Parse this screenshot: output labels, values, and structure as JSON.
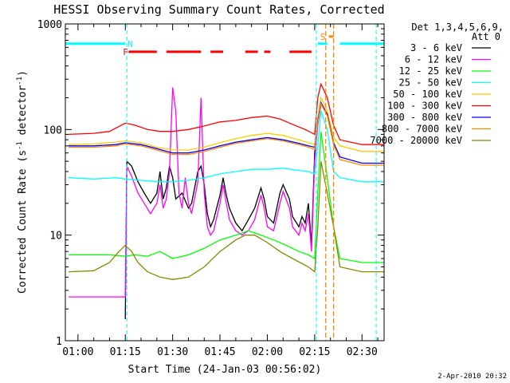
{
  "chart_data": {
    "type": "line",
    "title": "HESSI Observing Summary Count Rates, Corrected",
    "xlabel": "Start Time (24-Jan-03 00:56:02)",
    "ylabel_main": "Corrected Count Rate (s",
    "ylabel_sup1": "-1",
    "ylabel_mid": " detector",
    "ylabel_sup2": "-1",
    "ylabel_end": ")",
    "y_scale": "log",
    "ylim": [
      1,
      1000
    ],
    "xlim_min": [
      56,
      157
    ],
    "x_ticks": [
      {
        "label": "01:00",
        "min": 60
      },
      {
        "label": "01:15",
        "min": 75
      },
      {
        "label": "01:30",
        "min": 90
      },
      {
        "label": "01:45",
        "min": 105
      },
      {
        "label": "02:00",
        "min": 120
      },
      {
        "label": "02:15",
        "min": 135
      },
      {
        "label": "02:30",
        "min": 150
      }
    ],
    "y_ticks": [
      {
        "label": "1",
        "value": 1
      },
      {
        "label": "10",
        "value": 10
      },
      {
        "label": "100",
        "value": 100
      },
      {
        "label": "1000",
        "value": 1000
      }
    ],
    "legend_header_1": "Det 1,3,4,5,6,9,",
    "legend_header_2": "Att 0",
    "legend_placement": "right",
    "series": [
      {
        "name": "3 - 6 keV",
        "color": "#000000",
        "points": [
          [
            75,
            1.6
          ],
          [
            75.5,
            50
          ],
          [
            77,
            45
          ],
          [
            79,
            32
          ],
          [
            81,
            25
          ],
          [
            83,
            20
          ],
          [
            85,
            25
          ],
          [
            86,
            40
          ],
          [
            87,
            22
          ],
          [
            88,
            28
          ],
          [
            89,
            45
          ],
          [
            90,
            35
          ],
          [
            91,
            22
          ],
          [
            93,
            25
          ],
          [
            95,
            18
          ],
          [
            96,
            20
          ],
          [
            98,
            40
          ],
          [
            99,
            45
          ],
          [
            100,
            30
          ],
          [
            101,
            16
          ],
          [
            102,
            12
          ],
          [
            103,
            14
          ],
          [
            105,
            24
          ],
          [
            106,
            35
          ],
          [
            107,
            24
          ],
          [
            108,
            18
          ],
          [
            110,
            13
          ],
          [
            112,
            11
          ],
          [
            114,
            14
          ],
          [
            116,
            18
          ],
          [
            118,
            28
          ],
          [
            119,
            22
          ],
          [
            120,
            15
          ],
          [
            122,
            13
          ],
          [
            124,
            25
          ],
          [
            125,
            30
          ],
          [
            127,
            22
          ],
          [
            128,
            15
          ],
          [
            130,
            12
          ],
          [
            131,
            15
          ],
          [
            132,
            13
          ],
          [
            133,
            20
          ],
          [
            134,
            8
          ],
          [
            135,
            60
          ],
          [
            136,
            130
          ],
          [
            137,
            180
          ]
        ]
      },
      {
        "name": "6 - 12 keV",
        "color": "#ff00ff",
        "points": [
          [
            57,
            2.6
          ],
          [
            75,
            2.6
          ],
          [
            75.5,
            45
          ],
          [
            77,
            36
          ],
          [
            79,
            25
          ],
          [
            81,
            20
          ],
          [
            83,
            16
          ],
          [
            85,
            20
          ],
          [
            86,
            30
          ],
          [
            87,
            18
          ],
          [
            88,
            22
          ],
          [
            89,
            40
          ],
          [
            90,
            250
          ],
          [
            91,
            150
          ],
          [
            92,
            25
          ],
          [
            93,
            18
          ],
          [
            94,
            35
          ],
          [
            95,
            20
          ],
          [
            96,
            16
          ],
          [
            98,
            32
          ],
          [
            99,
            200
          ],
          [
            100,
            25
          ],
          [
            101,
            12
          ],
          [
            102,
            10
          ],
          [
            103,
            11
          ],
          [
            105,
            20
          ],
          [
            106,
            30
          ],
          [
            107,
            20
          ],
          [
            108,
            14
          ],
          [
            110,
            11
          ],
          [
            112,
            10
          ],
          [
            114,
            11
          ],
          [
            116,
            14
          ],
          [
            118,
            24
          ],
          [
            119,
            18
          ],
          [
            120,
            12
          ],
          [
            122,
            11
          ],
          [
            124,
            20
          ],
          [
            125,
            26
          ],
          [
            127,
            18
          ],
          [
            128,
            12
          ],
          [
            130,
            10
          ],
          [
            131,
            13
          ],
          [
            132,
            11
          ],
          [
            133,
            16
          ],
          [
            134,
            7
          ],
          [
            135,
            50
          ],
          [
            136,
            110
          ],
          [
            137,
            170
          ]
        ]
      },
      {
        "name": "12 - 25 keV",
        "color": "#00ff00",
        "points": [
          [
            57,
            6.5
          ],
          [
            70,
            6.5
          ],
          [
            75,
            6.3
          ],
          [
            78,
            6.5
          ],
          [
            82,
            6.3
          ],
          [
            86,
            7
          ],
          [
            90,
            6
          ],
          [
            95,
            6.5
          ],
          [
            100,
            7.5
          ],
          [
            105,
            9
          ],
          [
            110,
            10
          ],
          [
            114,
            11
          ],
          [
            118,
            10
          ],
          [
            122,
            9
          ],
          [
            126,
            8
          ],
          [
            130,
            7
          ],
          [
            133,
            6.5
          ],
          [
            135,
            6
          ],
          [
            136,
            25
          ],
          [
            137,
            95
          ],
          [
            139,
            35
          ],
          [
            141,
            12
          ],
          [
            143,
            6
          ],
          [
            150,
            5.5
          ],
          [
            157,
            5.5
          ]
        ]
      },
      {
        "name": "25 - 50 keV",
        "color": "#00ffff",
        "points": [
          [
            57,
            35
          ],
          [
            65,
            34
          ],
          [
            72,
            35
          ],
          [
            75,
            34
          ],
          [
            80,
            33
          ],
          [
            85,
            32
          ],
          [
            90,
            32
          ],
          [
            95,
            33
          ],
          [
            100,
            35
          ],
          [
            105,
            38
          ],
          [
            110,
            40
          ],
          [
            115,
            42
          ],
          [
            120,
            42
          ],
          [
            125,
            43
          ],
          [
            130,
            41
          ],
          [
            133,
            40
          ],
          [
            135,
            38
          ],
          [
            136,
            70
          ],
          [
            137,
            150
          ],
          [
            139,
            100
          ],
          [
            141,
            40
          ],
          [
            143,
            35
          ],
          [
            150,
            32
          ],
          [
            157,
            32
          ]
        ]
      },
      {
        "name": "50 - 100 keV",
        "color": "#ffcc00",
        "points": [
          [
            57,
            72
          ],
          [
            65,
            73
          ],
          [
            72,
            76
          ],
          [
            75,
            78
          ],
          [
            80,
            75
          ],
          [
            85,
            68
          ],
          [
            90,
            64
          ],
          [
            95,
            64
          ],
          [
            100,
            68
          ],
          [
            105,
            75
          ],
          [
            110,
            82
          ],
          [
            115,
            88
          ],
          [
            120,
            92
          ],
          [
            125,
            88
          ],
          [
            130,
            80
          ],
          [
            133,
            75
          ],
          [
            135,
            72
          ],
          [
            136,
            130
          ],
          [
            137,
            200
          ],
          [
            139,
            150
          ],
          [
            141,
            85
          ],
          [
            143,
            70
          ],
          [
            150,
            62
          ],
          [
            157,
            62
          ]
        ]
      },
      {
        "name": "100 - 300 keV",
        "color": "#ff0000",
        "points": [
          [
            57,
            90
          ],
          [
            65,
            92
          ],
          [
            70,
            96
          ],
          [
            75,
            115
          ],
          [
            78,
            110
          ],
          [
            82,
            100
          ],
          [
            86,
            96
          ],
          [
            90,
            96
          ],
          [
            95,
            100
          ],
          [
            100,
            108
          ],
          [
            105,
            118
          ],
          [
            110,
            122
          ],
          [
            115,
            130
          ],
          [
            120,
            134
          ],
          [
            124,
            126
          ],
          [
            128,
            112
          ],
          [
            132,
            100
          ],
          [
            135,
            90
          ],
          [
            136,
            200
          ],
          [
            137,
            270
          ],
          [
            139,
            200
          ],
          [
            141,
            110
          ],
          [
            143,
            80
          ],
          [
            150,
            72
          ],
          [
            157,
            72
          ]
        ]
      },
      {
        "name": "300 - 800 keV",
        "color": "#0000ff",
        "points": [
          [
            57,
            70
          ],
          [
            65,
            70
          ],
          [
            72,
            72
          ],
          [
            75,
            75
          ],
          [
            80,
            72
          ],
          [
            85,
            66
          ],
          [
            90,
            60
          ],
          [
            95,
            60
          ],
          [
            100,
            64
          ],
          [
            105,
            70
          ],
          [
            110,
            76
          ],
          [
            115,
            80
          ],
          [
            120,
            84
          ],
          [
            125,
            80
          ],
          [
            130,
            74
          ],
          [
            133,
            70
          ],
          [
            135,
            68
          ],
          [
            136,
            120
          ],
          [
            137,
            180
          ],
          [
            139,
            140
          ],
          [
            141,
            75
          ],
          [
            143,
            55
          ],
          [
            150,
            48
          ],
          [
            157,
            48
          ]
        ]
      },
      {
        "name": "800 - 7000 keV",
        "color": "#ff8800",
        "points": [
          [
            57,
            68
          ],
          [
            65,
            68
          ],
          [
            72,
            70
          ],
          [
            75,
            73
          ],
          [
            80,
            70
          ],
          [
            85,
            64
          ],
          [
            90,
            58
          ],
          [
            95,
            58
          ],
          [
            100,
            62
          ],
          [
            105,
            68
          ],
          [
            110,
            74
          ],
          [
            115,
            78
          ],
          [
            120,
            82
          ],
          [
            125,
            78
          ],
          [
            130,
            72
          ],
          [
            133,
            68
          ],
          [
            135,
            65
          ],
          [
            136,
            115
          ],
          [
            137,
            175
          ],
          [
            139,
            135
          ],
          [
            141,
            72
          ],
          [
            143,
            52
          ],
          [
            150,
            46
          ],
          [
            157,
            46
          ]
        ]
      },
      {
        "name": "7000 - 20000 keV",
        "color": "#888800",
        "points": [
          [
            57,
            4.5
          ],
          [
            65,
            4.6
          ],
          [
            70,
            5.5
          ],
          [
            73,
            7
          ],
          [
            75,
            8
          ],
          [
            77,
            7
          ],
          [
            79,
            5.5
          ],
          [
            82,
            4.5
          ],
          [
            86,
            4
          ],
          [
            90,
            3.8
          ],
          [
            95,
            4
          ],
          [
            100,
            5
          ],
          [
            105,
            7
          ],
          [
            110,
            9
          ],
          [
            113,
            10
          ],
          [
            116,
            10
          ],
          [
            120,
            8.5
          ],
          [
            124,
            7
          ],
          [
            128,
            6
          ],
          [
            133,
            5
          ],
          [
            135,
            4.5
          ],
          [
            136,
            12
          ],
          [
            137,
            50
          ],
          [
            139,
            25
          ],
          [
            141,
            12
          ],
          [
            143,
            5
          ],
          [
            150,
            4.5
          ],
          [
            157,
            4.5
          ]
        ]
      }
    ],
    "annotations": [
      {
        "text": "N",
        "color": "#00ffff",
        "min": 75,
        "value": 650
      },
      {
        "text": "F",
        "color": "#ff0000",
        "min": 73.5,
        "value": 545
      },
      {
        "text": "S",
        "color": "#ff8800",
        "min": 136,
        "value": 760
      }
    ],
    "cyan_flag": [
      [
        56,
        75
      ],
      [
        136,
        139
      ],
      [
        143,
        157
      ]
    ],
    "red_flag": [
      [
        76,
        85
      ],
      [
        88,
        99
      ],
      [
        102,
        106
      ],
      [
        113,
        117
      ],
      [
        119,
        121
      ],
      [
        127,
        134
      ]
    ],
    "cyan_boundaries": [
      75.5,
      135.5,
      154.5
    ],
    "orange_boundaries": [
      138.5,
      141
    ],
    "timestamp": "2-Apr-2010 20:32"
  }
}
